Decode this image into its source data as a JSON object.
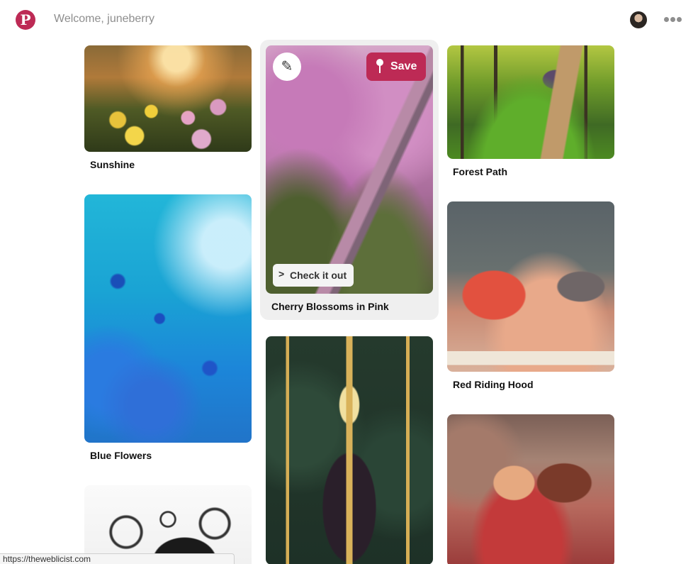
{
  "header": {
    "logo_letter": "P",
    "welcome_text": "Welcome, juneberry",
    "avatar": "avatar",
    "more_icon": "more-horizontal-icon"
  },
  "pins": [
    {
      "title": "Sunshine"
    },
    {
      "title": "Blue Flowers"
    },
    {
      "title": ""
    },
    {
      "title": "Cherry Blossoms in Pink",
      "save_label": "Save",
      "check_label": "Check it out",
      "edit_icon": "pencil-icon",
      "pin_icon": "pushpin-icon"
    },
    {
      "title": ""
    },
    {
      "title": "Forest Path"
    },
    {
      "title": "Red Riding Hood"
    },
    {
      "title": ""
    }
  ],
  "colors": {
    "brand": "#bd2a55",
    "muted_text": "#8e8e8e",
    "hover_bg": "#efefef"
  },
  "status_bar": {
    "url": "https://theweblicist.com"
  }
}
